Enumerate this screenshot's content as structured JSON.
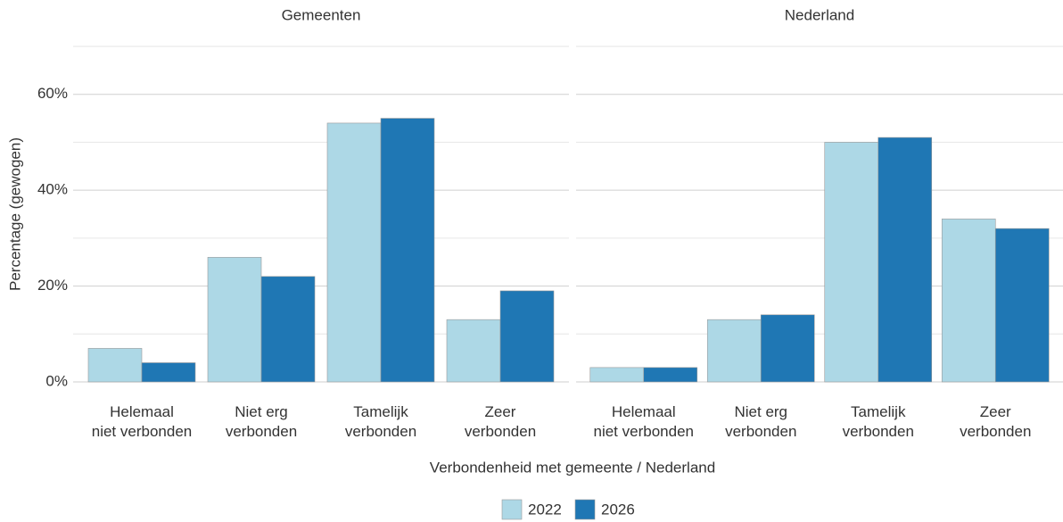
{
  "chart_data": [
    {
      "type": "bar",
      "title": "Gemeenten",
      "ylabel": "Percentage (gewogen)",
      "xlabel": "Verbondenheid met gemeente / Nederland",
      "categories": [
        "Helemaal\nniet verbonden",
        "Niet erg\nverbonden",
        "Tamelijk\nverbonden",
        "Zeer\nverbonden"
      ],
      "series": [
        {
          "name": "2022",
          "color": "#add8e6",
          "values": [
            7,
            26,
            54,
            13
          ]
        },
        {
          "name": "2026",
          "color": "#1f77b4",
          "values": [
            4,
            22,
            55,
            19
          ]
        }
      ],
      "ylim": [
        0,
        70
      ],
      "yticks": [
        {
          "value": 0,
          "label": "0%"
        },
        {
          "value": 20,
          "label": "20%"
        },
        {
          "value": 40,
          "label": "40%"
        },
        {
          "value": 60,
          "label": "60%"
        }
      ],
      "yminor": [
        10,
        30,
        50,
        70
      ],
      "grid": true
    },
    {
      "type": "bar",
      "title": "Nederland",
      "categories": [
        "Helemaal\nniet verbonden",
        "Niet erg\nverbonden",
        "Tamelijk\nverbonden",
        "Zeer\nverbonden"
      ],
      "series": [
        {
          "name": "2022",
          "color": "#add8e6",
          "values": [
            3,
            13,
            50,
            34
          ]
        },
        {
          "name": "2026",
          "color": "#1f77b4",
          "values": [
            3,
            14,
            51,
            32
          ]
        }
      ],
      "ylim": [
        0,
        70
      ],
      "yticks": [
        0,
        20,
        40,
        60
      ],
      "yminor": [
        10,
        30,
        50,
        70
      ],
      "grid": true
    }
  ]
}
